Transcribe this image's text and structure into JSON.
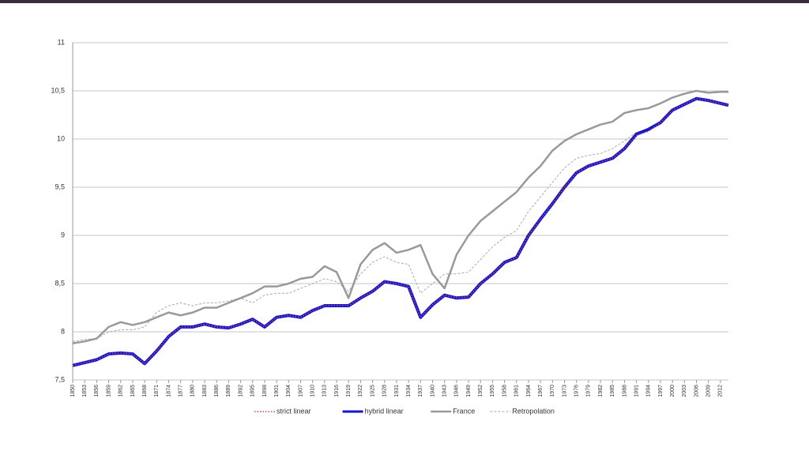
{
  "chart_data": {
    "type": "line",
    "x": [
      1850,
      1853,
      1856,
      1859,
      1862,
      1865,
      1868,
      1871,
      1874,
      1877,
      1880,
      1883,
      1886,
      1889,
      1892,
      1895,
      1898,
      1901,
      1904,
      1907,
      1910,
      1913,
      1916,
      1919,
      1922,
      1925,
      1928,
      1931,
      1934,
      1937,
      1940,
      1943,
      1946,
      1949,
      1952,
      1955,
      1958,
      1961,
      1964,
      1967,
      1970,
      1973,
      1976,
      1979,
      1982,
      1985,
      1988,
      1991,
      1994,
      1997,
      2000,
      2003,
      2006,
      2009,
      2012,
      2014
    ],
    "xlim": [
      1850,
      2014
    ],
    "xticks": [
      1850,
      1853,
      1856,
      1859,
      1862,
      1865,
      1868,
      1871,
      1874,
      1877,
      1880,
      1883,
      1886,
      1889,
      1892,
      1895,
      1898,
      1901,
      1904,
      1907,
      1910,
      1913,
      1916,
      1919,
      1922,
      1925,
      1928,
      1931,
      1934,
      1937,
      1940,
      1943,
      1946,
      1949,
      1952,
      1955,
      1958,
      1961,
      1964,
      1967,
      1970,
      1973,
      1976,
      1979,
      1982,
      1985,
      1988,
      1991,
      1994,
      1997,
      2000,
      2003,
      2006,
      2009,
      2012
    ],
    "ylim": [
      7.5,
      11
    ],
    "yticks": [
      {
        "value": 7.5,
        "label": "7,5"
      },
      8,
      {
        "value": 8.5,
        "label": "8,5"
      },
      9,
      {
        "value": 9.5,
        "label": "9,5"
      },
      10,
      {
        "value": 10.5,
        "label": "10,5"
      },
      11
    ],
    "grid": true,
    "legend": "bottom",
    "series": [
      {
        "name": "strict linear",
        "color": "#c0504d",
        "style": "dotted",
        "values": [
          7.65,
          7.68,
          7.71,
          7.77,
          7.78,
          7.77,
          7.67,
          7.8,
          7.95,
          8.05,
          8.05,
          8.08,
          8.05,
          8.04,
          8.08,
          8.13,
          8.05,
          8.15,
          8.17,
          8.15,
          8.22,
          8.27,
          8.27,
          8.27,
          8.35,
          8.42,
          8.52,
          8.5,
          8.47,
          8.15,
          8.28,
          8.38,
          8.35,
          8.36,
          8.5,
          8.6,
          8.72,
          8.77,
          9.0,
          9.17,
          9.33,
          9.5,
          9.65,
          9.72,
          9.76,
          9.8,
          9.9,
          10.04,
          10.08,
          10.17,
          10.3,
          10.36,
          10.42,
          10.4,
          10.37,
          10.35
        ]
      },
      {
        "name": "hybrid linear",
        "color": "#1414d2",
        "style": "thick",
        "values": [
          7.65,
          7.68,
          7.71,
          7.77,
          7.78,
          7.77,
          7.67,
          7.8,
          7.95,
          8.05,
          8.05,
          8.08,
          8.05,
          8.04,
          8.08,
          8.13,
          8.05,
          8.15,
          8.17,
          8.15,
          8.22,
          8.27,
          8.27,
          8.27,
          8.35,
          8.42,
          8.52,
          8.5,
          8.47,
          8.15,
          8.28,
          8.38,
          8.35,
          8.36,
          8.5,
          8.6,
          8.72,
          8.77,
          9.0,
          9.17,
          9.33,
          9.5,
          9.65,
          9.72,
          9.76,
          9.8,
          9.9,
          10.05,
          10.1,
          10.17,
          10.3,
          10.36,
          10.42,
          10.4,
          10.37,
          10.35
        ]
      },
      {
        "name": "France",
        "color": "#999999",
        "style": "solid",
        "values": [
          7.88,
          7.9,
          7.93,
          8.05,
          8.1,
          8.07,
          8.1,
          8.15,
          8.2,
          8.17,
          8.2,
          8.25,
          8.25,
          8.3,
          8.35,
          8.4,
          8.47,
          8.47,
          8.5,
          8.55,
          8.57,
          8.68,
          8.62,
          8.35,
          8.7,
          8.85,
          8.92,
          8.82,
          8.85,
          8.9,
          8.6,
          8.45,
          8.8,
          9.0,
          9.15,
          9.25,
          9.35,
          9.45,
          9.6,
          9.72,
          9.88,
          9.98,
          10.05,
          10.1,
          10.15,
          10.18,
          10.27,
          10.3,
          10.32,
          10.37,
          10.43,
          10.47,
          10.5,
          10.48,
          10.49,
          10.49
        ]
      },
      {
        "name": "Retropolation",
        "color": "#aaaaaa",
        "style": "dashed",
        "values": [
          7.9,
          7.92,
          7.93,
          8.0,
          8.02,
          8.02,
          8.05,
          8.2,
          8.27,
          8.3,
          8.27,
          8.3,
          8.3,
          8.32,
          8.35,
          8.3,
          8.38,
          8.4,
          8.4,
          8.45,
          8.5,
          8.55,
          8.52,
          8.42,
          8.6,
          8.72,
          8.78,
          8.72,
          8.7,
          8.4,
          8.5,
          8.6,
          8.6,
          8.62,
          8.75,
          8.88,
          8.98,
          9.05,
          9.25,
          9.4,
          9.55,
          9.7,
          9.8,
          9.83,
          9.85,
          9.9,
          9.98,
          10.07,
          10.1,
          10.18,
          10.3,
          10.37,
          10.43,
          10.4,
          10.37,
          10.35
        ]
      }
    ]
  }
}
